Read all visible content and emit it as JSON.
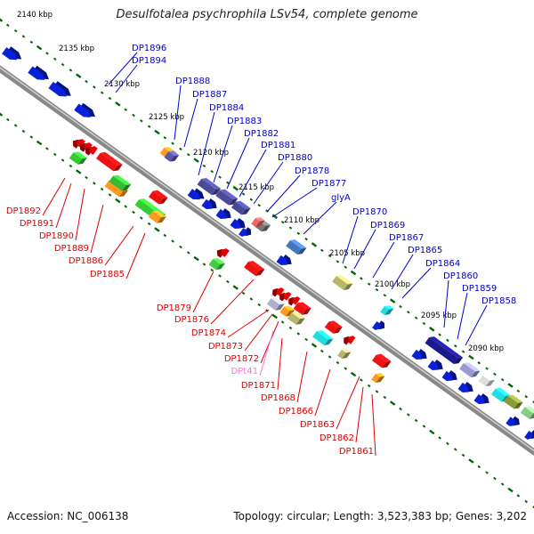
{
  "title": "Desulfotalea psychrophila LSv54, complete genome",
  "footer": {
    "accession": "Accession: NC_006138",
    "topology": "Topology: circular; Length: 3,523,383 bp; Genes: 3,202"
  },
  "colors": {
    "top_strand_gene": "#0000cc",
    "bottom_strand_gene": "#dd0000",
    "top_label": "#0000cc",
    "bottom_label": "#dd0000",
    "pseudo_label": "#ff77cc",
    "tick": "#006600",
    "backbone": "#888888",
    "scale_text": "#000000"
  },
  "scale_ticks": [
    "2140 kbp",
    "2135 kbp",
    "2130 kbp",
    "2125 kbp",
    "2120 kbp",
    "2115 kbp",
    "2110 kbp",
    "2105 kbp",
    "2100 kbp",
    "2095 kbp",
    "2090 kbp"
  ],
  "top_labels": [
    "DP1896",
    "DP1894",
    "DP1888",
    "DP1887",
    "DP1884",
    "DP1883",
    "DP1882",
    "DP1881",
    "DP1880",
    "DP1878",
    "DP1877",
    "glyA",
    "DP1870",
    "DP1869",
    "DP1867",
    "DP1865",
    "DP1864",
    "DP1860",
    "DP1859",
    "DP1858"
  ],
  "bottom_labels": [
    "DP1892",
    "DP1891",
    "DP1890",
    "DP1889",
    "DP1886",
    "DP1885",
    "DP1879",
    "DP1876",
    "DP1874",
    "DP1873",
    "DP1872",
    "DPt41",
    "DP1871",
    "DP1868",
    "DP1866",
    "DP1863",
    "DP1862",
    "DP1861"
  ]
}
